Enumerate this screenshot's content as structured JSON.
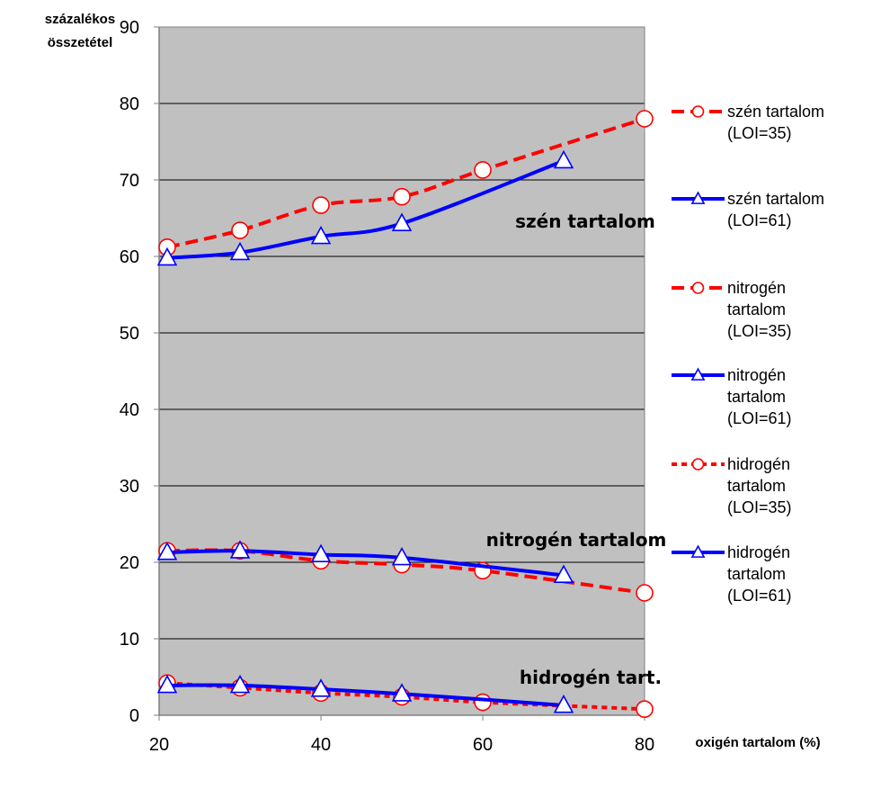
{
  "chart_data": {
    "type": "line",
    "ylabel_line1": "százalékos",
    "ylabel_line2": "összetétel",
    "xlabel": "oxigén tartalom (%)",
    "xlim": [
      20,
      80
    ],
    "ylim": [
      0,
      90
    ],
    "x_ticks": [
      "20",
      "40",
      "60",
      "80"
    ],
    "y_ticks": [
      "0",
      "10",
      "20",
      "30",
      "40",
      "50",
      "60",
      "70",
      "80",
      "90"
    ],
    "grid": "horizontal",
    "plot_background": "#c0c0c0",
    "legend_placement": "right",
    "annotations": [
      "szén tartalom",
      "nitrogén tartalom",
      "hidrogén tart."
    ],
    "series": [
      {
        "name_lines": [
          "szén tartalom",
          "(LOI=35)"
        ],
        "color": "#ff0000",
        "dash": "dashed",
        "marker": "circle",
        "x": [
          21,
          30,
          40,
          50,
          60,
          80
        ],
        "values": [
          61.2,
          63.4,
          66.7,
          67.8,
          71.3,
          78.0
        ]
      },
      {
        "name_lines": [
          "szén tartalom",
          "(LOI=61)"
        ],
        "color": "#0000ff",
        "dash": "solid",
        "marker": "triangle",
        "x": [
          21,
          30,
          40,
          50,
          70
        ],
        "values": [
          59.8,
          60.5,
          62.6,
          64.3,
          72.5
        ]
      },
      {
        "name_lines": [
          "nitrogén",
          "tartalom",
          "(LOI=35)"
        ],
        "color": "#ff0000",
        "dash": "dashed",
        "marker": "circle",
        "x": [
          21,
          30,
          40,
          50,
          60,
          80
        ],
        "values": [
          21.5,
          21.5,
          20.2,
          19.7,
          18.9,
          16.0
        ]
      },
      {
        "name_lines": [
          "nitrogén",
          "tartalom",
          "(LOI=61)"
        ],
        "color": "#0000ff",
        "dash": "solid",
        "marker": "triangle",
        "x": [
          21,
          30,
          40,
          50,
          70
        ],
        "values": [
          21.3,
          21.5,
          21.0,
          20.6,
          18.3
        ]
      },
      {
        "name_lines": [
          "hidrogén",
          "tartalom",
          "(LOI=35)"
        ],
        "color": "#ff0000",
        "dash": "dotted",
        "marker": "circle",
        "x": [
          21,
          30,
          40,
          50,
          60,
          80
        ],
        "values": [
          4.2,
          3.6,
          2.9,
          2.4,
          1.7,
          0.8
        ]
      },
      {
        "name_lines": [
          "hidrogén",
          "tartalom",
          "(LOI=61)"
        ],
        "color": "#0000ff",
        "dash": "solid",
        "marker": "triangle",
        "x": [
          21,
          30,
          40,
          50,
          70
        ],
        "values": [
          3.9,
          3.9,
          3.4,
          2.8,
          1.3
        ]
      }
    ]
  }
}
